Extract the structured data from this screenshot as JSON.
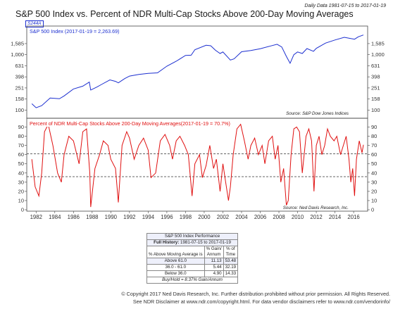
{
  "header": {
    "title": "S&P 500 Index vs. Percent of NDR Multi-Cap Stocks Above 200-Day Moving Averages",
    "date_range": "Daily Data 1981-07-15 to 2017-01-19",
    "badge": "S244A"
  },
  "chart_data": [
    {
      "type": "line",
      "panel": "top",
      "series": [
        {
          "name": "S&P 500 Index (2017-01-19 = 2,263.69)",
          "color": "#1c2fd0",
          "x": [
            1981.54,
            1982.0,
            1982.6,
            1983.5,
            1984.5,
            1985.0,
            1986.0,
            1987.0,
            1987.7,
            1987.85,
            1988.5,
            1989.0,
            1989.9,
            1990.5,
            1990.8,
            1991.5,
            1992.0,
            1993.0,
            1994.0,
            1995.0,
            1996.0,
            1997.0,
            1998.0,
            1998.6,
            1999.0,
            2000.2,
            2000.7,
            2001.2,
            2001.7,
            2002.0,
            2002.8,
            2003.2,
            2004.0,
            2005.0,
            2006.0,
            2007.0,
            2007.8,
            2008.3,
            2008.8,
            2009.2,
            2009.6,
            2010.0,
            2010.5,
            2011.0,
            2011.7,
            2012.0,
            2013.0,
            2014.0,
            2015.0,
            2015.7,
            2016.1,
            2016.5,
            2017.05
          ],
          "values": [
            130,
            110,
            120,
            165,
            160,
            180,
            240,
            270,
            320,
            230,
            260,
            290,
            350,
            330,
            310,
            370,
            410,
            440,
            460,
            470,
            620,
            760,
            970,
            980,
            1230,
            1480,
            1450,
            1200,
            1050,
            1120,
            800,
            840,
            1130,
            1190,
            1280,
            1420,
            1540,
            1380,
            930,
            700,
            1000,
            1120,
            1050,
            1290,
            1150,
            1300,
            1620,
            1840,
            2060,
            1950,
            1900,
            2100,
            2263.69
          ]
        }
      ],
      "y_scale": "log",
      "yticks": [
        "1,585",
        "1,000",
        "631",
        "398",
        "251",
        "158",
        "100"
      ],
      "ytick_values": [
        1585,
        1000,
        631,
        398,
        251,
        158,
        100
      ],
      "ylim": [
        80,
        2600
      ],
      "source": "Source: S&P Dow Jones Indices",
      "grid": false
    },
    {
      "type": "line",
      "panel": "bottom",
      "series": [
        {
          "name": "Percent of NDR Multi-Cap Stocks Above 200-Day Moving Averages(2017-01-19 = 70.7%)",
          "color": "#e01010",
          "x": [
            1981.54,
            1981.9,
            1982.3,
            1982.6,
            1982.9,
            1983.3,
            1983.8,
            1984.3,
            1984.7,
            1985.0,
            1985.5,
            1986.0,
            1986.6,
            1987.0,
            1987.4,
            1987.75,
            1987.85,
            1988.3,
            1988.8,
            1989.2,
            1989.7,
            1990.0,
            1990.5,
            1990.8,
            1991.2,
            1991.7,
            1992.0,
            1992.5,
            1993.0,
            1993.5,
            1994.0,
            1994.3,
            1994.8,
            1995.3,
            1995.8,
            1996.3,
            1996.6,
            1997.0,
            1997.4,
            1997.9,
            1998.3,
            1998.7,
            1999.0,
            1999.5,
            1999.8,
            2000.2,
            2000.6,
            2001.0,
            2001.3,
            2001.7,
            2002.0,
            2002.3,
            2002.6,
            2002.8,
            2003.1,
            2003.5,
            2003.9,
            2004.3,
            2004.7,
            2005.0,
            2005.4,
            2005.8,
            2006.2,
            2006.5,
            2006.9,
            2007.3,
            2007.6,
            2007.9,
            2008.2,
            2008.5,
            2008.8,
            2009.0,
            2009.3,
            2009.6,
            2009.9,
            2010.2,
            2010.5,
            2010.9,
            2011.2,
            2011.5,
            2011.75,
            2012.0,
            2012.3,
            2012.6,
            2012.9,
            2013.2,
            2013.5,
            2013.9,
            2014.2,
            2014.6,
            2014.9,
            2015.2,
            2015.5,
            2015.7,
            2015.9,
            2016.1,
            2016.3,
            2016.6,
            2016.9,
            2017.05
          ],
          "values": [
            55,
            25,
            15,
            40,
            85,
            93,
            70,
            40,
            30,
            60,
            80,
            75,
            50,
            85,
            88,
            40,
            3,
            45,
            60,
            75,
            70,
            55,
            45,
            8,
            70,
            85,
            78,
            55,
            70,
            78,
            65,
            35,
            40,
            75,
            82,
            70,
            55,
            75,
            80,
            70,
            60,
            15,
            50,
            60,
            35,
            48,
            70,
            45,
            55,
            20,
            50,
            30,
            10,
            25,
            60,
            88,
            93,
            75,
            55,
            70,
            78,
            60,
            70,
            50,
            75,
            80,
            55,
            70,
            30,
            45,
            5,
            10,
            60,
            88,
            90,
            85,
            40,
            80,
            88,
            75,
            20,
            70,
            80,
            60,
            70,
            88,
            80,
            75,
            80,
            60,
            70,
            80,
            55,
            30,
            45,
            15,
            55,
            75,
            62,
            70.7
          ]
        }
      ],
      "yticks": [
        "90",
        "80",
        "70",
        "60",
        "50",
        "40",
        "30",
        "20",
        "10",
        "0"
      ],
      "ylim": [
        0,
        95
      ],
      "reference_lines": [
        61.0,
        36.0
      ],
      "source": "Source: Ned Davis Research, Inc."
    }
  ],
  "x_axis": {
    "ticks": [
      "1982",
      "1984",
      "1986",
      "1988",
      "1990",
      "1992",
      "1994",
      "1996",
      "1998",
      "2000",
      "2002",
      "2004",
      "2006",
      "2008",
      "2010",
      "2012",
      "2014",
      "2016"
    ],
    "tick_values": [
      1982,
      1984,
      1986,
      1988,
      1990,
      1992,
      1994,
      1996,
      1998,
      2000,
      2002,
      2004,
      2006,
      2008,
      2010,
      2012,
      2014,
      2016
    ],
    "range": [
      1981,
      2017.5
    ]
  },
  "performance_table": {
    "title": "S&P 500 Index Performance",
    "full_history_label": "Full History:",
    "full_history_range": "1981-07-15 to 2017-01-19",
    "col_condition": "% Above Moving Average is",
    "col_gain_1": "% Gain/",
    "col_gain_2": "Annum",
    "col_time_1": "% of",
    "col_time_2": "Time",
    "rows": [
      {
        "condition": "Above 61.0",
        "gain": "11.13",
        "time": "53.48"
      },
      {
        "condition": "36.0 - 61.0",
        "gain": "5.44",
        "time": "32.19"
      },
      {
        "condition": "Below 36.0",
        "gain": "4.90",
        "time": "14.33"
      }
    ],
    "buy_hold": "Buy/Hold = 8.37% Gain/Annum"
  },
  "footer": {
    "line1": "© Copyright 2017 Ned Davis Research, Inc. Further distribution prohibited without prior permission. All Rights Reserved.",
    "line2": "See NDR Disclaimer at www.ndr.com/copyright.html. For data vendor disclaimers refer to www.ndr.com/vendorinfo/"
  }
}
